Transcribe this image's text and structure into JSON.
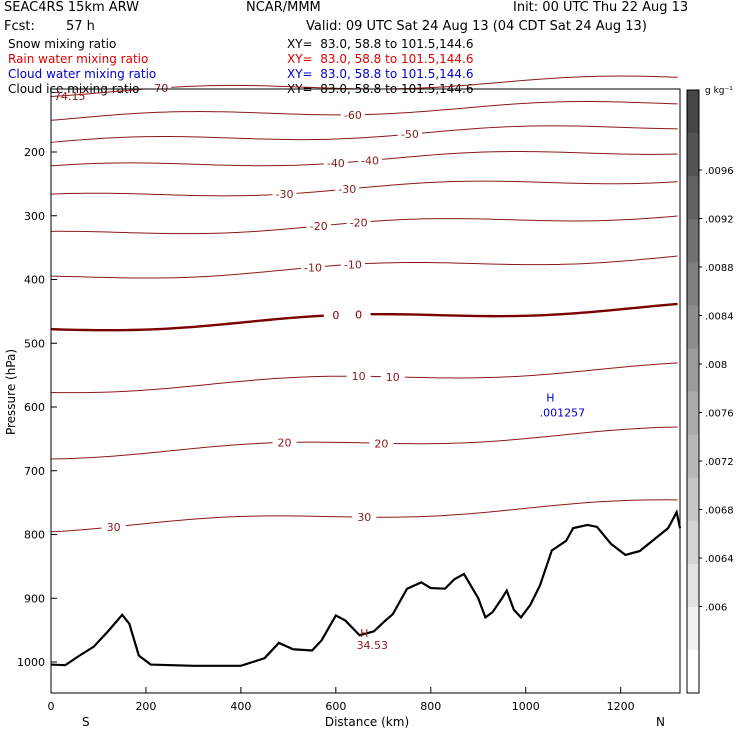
{
  "header": {
    "model": "SEAC4RS 15km ARW",
    "center": "NCAR/MMM",
    "init": "Init: 00 UTC Thu 22 Aug 13",
    "fcst_label": "Fcst:",
    "fcst_value": "57 h",
    "valid": "Valid: 09 UTC Sat 24 Aug 13 (04 CDT Sat 24 Aug 13)"
  },
  "fields": [
    {
      "label": "Snow mixing ratio",
      "xy": "XY=  83.0, 58.8 to 101.5,144.6",
      "color": "#000000"
    },
    {
      "label": "Rain water mixing ratio",
      "xy": "XY=  83.0, 58.8 to 101.5,144.6",
      "color": "#e00000"
    },
    {
      "label": "Cloud water mixing ratio",
      "xy": "XY=  83.0, 58.8 to 101.5,144.6",
      "color": "#0000cc"
    },
    {
      "label": "Cloud ice mixing ratio",
      "xy": "XY=  83.0, 58.8 to 101.5,144.6",
      "color": "#000000"
    }
  ],
  "colors": {
    "contour": "#8b1a1a",
    "zero_contour": "#7a0000",
    "terrain": "#000000",
    "max_label": "#0000cc"
  },
  "chart_data": {
    "type": "contour-cross-section",
    "xlabel": "Distance (km)",
    "ylabel": "Pressure (hPa)",
    "x_ticks": [
      "0",
      "200",
      "400",
      "600",
      "800",
      "1000",
      "1200"
    ],
    "y_ticks": [
      "200",
      "300",
      "400",
      "500",
      "600",
      "700",
      "800",
      "900",
      "1000"
    ],
    "xlim": [
      0,
      1325
    ],
    "ylim": [
      1050,
      100
    ],
    "end_labels": {
      "left": "S",
      "right": "N"
    },
    "colorbar": {
      "unit": "g kg⁻¹",
      "ticks": [
        ".0096",
        ".0092",
        ".0088",
        ".0084",
        ".008",
        ".0076",
        ".0072",
        ".0068",
        ".0064",
        ".006"
      ]
    },
    "corner_value": "74.15",
    "max_marker": {
      "symbol": "H",
      "value": ".001257",
      "x_km": 1035,
      "p_hpa": 598
    },
    "terrain_max": {
      "symbol": "H",
      "value": "34.53",
      "x_km": 660,
      "p_hpa": 973
    },
    "temperature_contours": [
      {
        "value": -70,
        "label_x_km": [
          225
        ]
      },
      {
        "value": -60,
        "label_x_km": [
          635
        ]
      },
      {
        "value": -50,
        "label_x_km": [
          755
        ]
      },
      {
        "value": -40,
        "label_x_km": [
          595,
          670
        ]
      },
      {
        "value": -30,
        "label_x_km": [
          495,
          625
        ]
      },
      {
        "value": -20,
        "label_x_km": [
          565,
          650
        ]
      },
      {
        "value": -10,
        "label_x_km": [
          555,
          640
        ]
      },
      {
        "value": 0,
        "label_x_km": [
          595,
          645
        ]
      },
      {
        "value": 10,
        "label_x_km": [
          645,
          715
        ]
      },
      {
        "value": 20,
        "label_x_km": [
          495,
          700
        ]
      },
      {
        "value": 30,
        "label_x_km": [
          130,
          655
        ]
      }
    ],
    "terrain_profile_hpa": [
      [
        0,
        1004
      ],
      [
        30,
        1005
      ],
      [
        60,
        990
      ],
      [
        90,
        976
      ],
      [
        120,
        952
      ],
      [
        150,
        926
      ],
      [
        165,
        940
      ],
      [
        185,
        990
      ],
      [
        210,
        1004
      ],
      [
        300,
        1006
      ],
      [
        400,
        1006
      ],
      [
        450,
        994
      ],
      [
        480,
        970
      ],
      [
        510,
        980
      ],
      [
        550,
        982
      ],
      [
        570,
        966
      ],
      [
        600,
        927
      ],
      [
        620,
        935
      ],
      [
        650,
        958
      ],
      [
        680,
        952
      ],
      [
        700,
        938
      ],
      [
        720,
        925
      ],
      [
        750,
        885
      ],
      [
        780,
        875
      ],
      [
        800,
        884
      ],
      [
        830,
        885
      ],
      [
        850,
        870
      ],
      [
        870,
        862
      ],
      [
        900,
        900
      ],
      [
        915,
        930
      ],
      [
        930,
        922
      ],
      [
        950,
        900
      ],
      [
        960,
        888
      ],
      [
        975,
        918
      ],
      [
        990,
        930
      ],
      [
        1010,
        910
      ],
      [
        1030,
        880
      ],
      [
        1055,
        825
      ],
      [
        1085,
        810
      ],
      [
        1100,
        790
      ],
      [
        1130,
        785
      ],
      [
        1150,
        788
      ],
      [
        1180,
        815
      ],
      [
        1210,
        832
      ],
      [
        1240,
        826
      ],
      [
        1270,
        808
      ],
      [
        1300,
        790
      ],
      [
        1318,
        765
      ],
      [
        1325,
        790
      ]
    ]
  }
}
